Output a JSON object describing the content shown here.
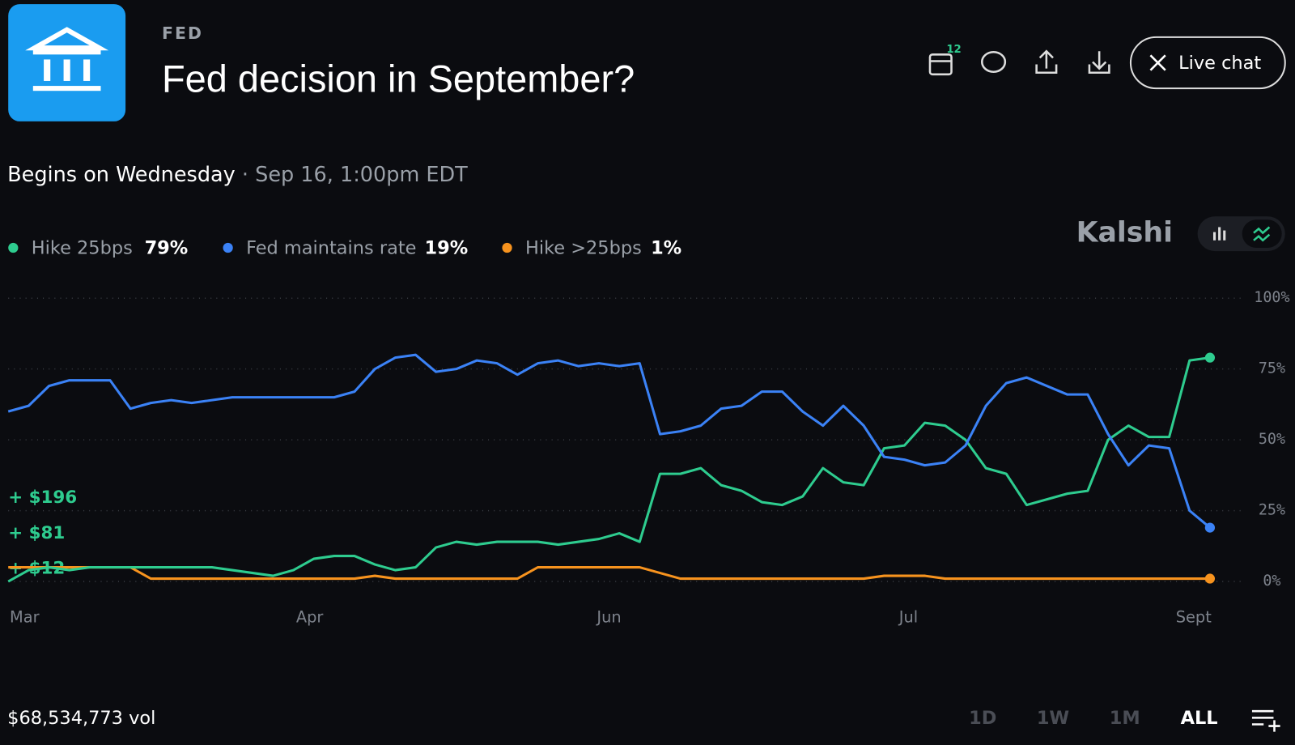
{
  "header": {
    "category": "FED",
    "title": "Fed decision in September?",
    "calendar_badge": "12",
    "live_chat": "Live chat"
  },
  "schedule": {
    "begins": "Begins on Wednesday",
    "time": "· Sep 16, 1:00pm EDT"
  },
  "brand": "Kalshi",
  "volume": "$68,534,773 vol",
  "time_ranges": [
    "1D",
    "1W",
    "1M",
    "ALL"
  ],
  "selected_range": "ALL",
  "chart_data": {
    "type": "line",
    "x": [
      0,
      1,
      2,
      3,
      4,
      5,
      6,
      7,
      8,
      9,
      10,
      11,
      12,
      13,
      14,
      15,
      16,
      17,
      18,
      19,
      20,
      21,
      22,
      23,
      24,
      25,
      26,
      27,
      28,
      29,
      30,
      31,
      32,
      33,
      34,
      35,
      36,
      37,
      38,
      39,
      40,
      41,
      42,
      43,
      44,
      45,
      46,
      47,
      48,
      49,
      50,
      51,
      52,
      53,
      54,
      55,
      56,
      57,
      58,
      59
    ],
    "xlim": [
      0,
      59
    ],
    "xticks": [
      {
        "value": 0.8,
        "label": "Mar"
      },
      {
        "value": 14.8,
        "label": "Apr"
      },
      {
        "value": 29.5,
        "label": "Jun"
      },
      {
        "value": 44.2,
        "label": "Jul"
      },
      {
        "value": 58.2,
        "label": "Sept"
      }
    ],
    "ylim": [
      0,
      100
    ],
    "yticks": [
      {
        "value": 0,
        "label": "0%"
      },
      {
        "value": 25,
        "label": "25%"
      },
      {
        "value": 50,
        "label": "50%"
      },
      {
        "value": 75,
        "label": "75%"
      },
      {
        "value": 100,
        "label": "100%"
      }
    ],
    "grid": true,
    "annotations": [
      "+ $196",
      "+ $81",
      "+ $12"
    ],
    "series": [
      {
        "name": "Hike 25bps",
        "color": "#2ecc8f",
        "legend_value": "79%",
        "values": [
          0,
          4,
          5,
          4,
          5,
          5,
          5,
          5,
          5,
          5,
          5,
          4,
          3,
          2,
          4,
          8,
          9,
          9,
          6,
          4,
          5,
          12,
          14,
          13,
          14,
          14,
          14,
          13,
          14,
          15,
          17,
          14,
          38,
          38,
          40,
          34,
          32,
          28,
          27,
          30,
          40,
          35,
          34,
          47,
          48,
          56,
          55,
          50,
          40,
          38,
          27,
          29,
          31,
          32,
          50,
          55,
          51,
          51,
          78,
          79
        ]
      },
      {
        "name": "Fed maintains rate",
        "color": "#3b82f6",
        "legend_value": "19%",
        "values": [
          60,
          62,
          69,
          71,
          71,
          71,
          61,
          63,
          64,
          63,
          64,
          65,
          65,
          65,
          65,
          65,
          65,
          67,
          75,
          79,
          80,
          74,
          75,
          78,
          77,
          73,
          77,
          78,
          76,
          77,
          76,
          77,
          52,
          53,
          55,
          61,
          62,
          67,
          67,
          60,
          55,
          62,
          55,
          44,
          43,
          41,
          42,
          48,
          62,
          70,
          72,
          69,
          66,
          66,
          52,
          41,
          48,
          47,
          25,
          19
        ]
      },
      {
        "name": "Hike >25bps",
        "color": "#f7931e",
        "legend_value": "1%",
        "values": [
          5,
          5,
          5,
          5,
          5,
          5,
          5,
          1,
          1,
          1,
          1,
          1,
          1,
          1,
          1,
          1,
          1,
          1,
          2,
          1,
          1,
          1,
          1,
          1,
          1,
          1,
          5,
          5,
          5,
          5,
          5,
          5,
          3,
          1,
          1,
          1,
          1,
          1,
          1,
          1,
          1,
          1,
          1,
          2,
          2,
          2,
          1,
          1,
          1,
          1,
          1,
          1,
          1,
          1,
          1,
          1,
          1,
          1,
          1,
          1
        ]
      }
    ]
  }
}
